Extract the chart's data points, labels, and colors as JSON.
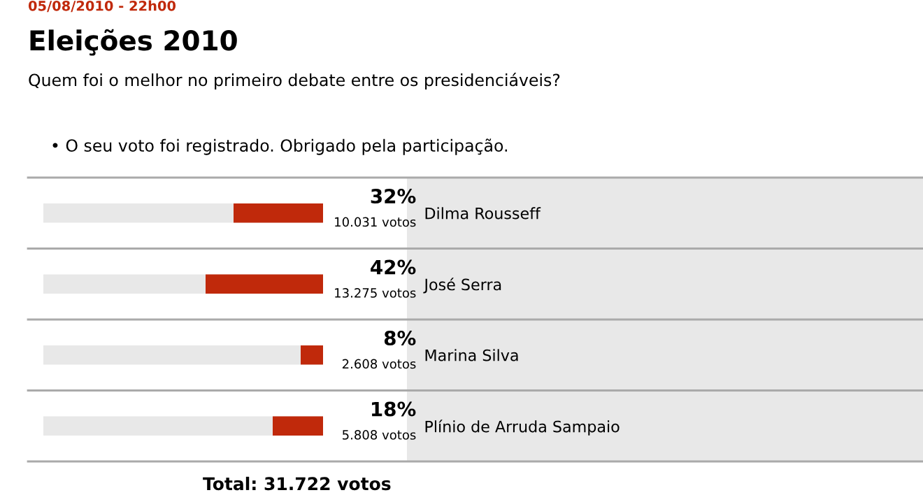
{
  "chart_data": {
    "type": "bar",
    "orientation": "horizontal",
    "title": "Eleições 2010",
    "subtitle": "Quem foi o melhor no primeiro debate entre os presidenciáveis?",
    "categories": [
      "Dilma Rousseff",
      "José Serra",
      "Marina Silva",
      "Plínio de Arruda Sampaio"
    ],
    "values": [
      32,
      42,
      8,
      18
    ],
    "color": "#c0290b",
    "xlim": [
      100,
      0
    ],
    "value_labels": [
      "32%",
      "42%",
      "8%",
      "18%"
    ],
    "annotations": [
      "05/08/2010 - 22h00",
      "• O seu voto foi registrado. Obrigado pela participação.",
      "10.031 votos",
      "13.275 votos",
      "2.608 votos",
      "5.808 votos",
      "Total: 31.722 votos"
    ],
    "grid": false,
    "legend": false,
    "tick_labels": "y"
  }
}
